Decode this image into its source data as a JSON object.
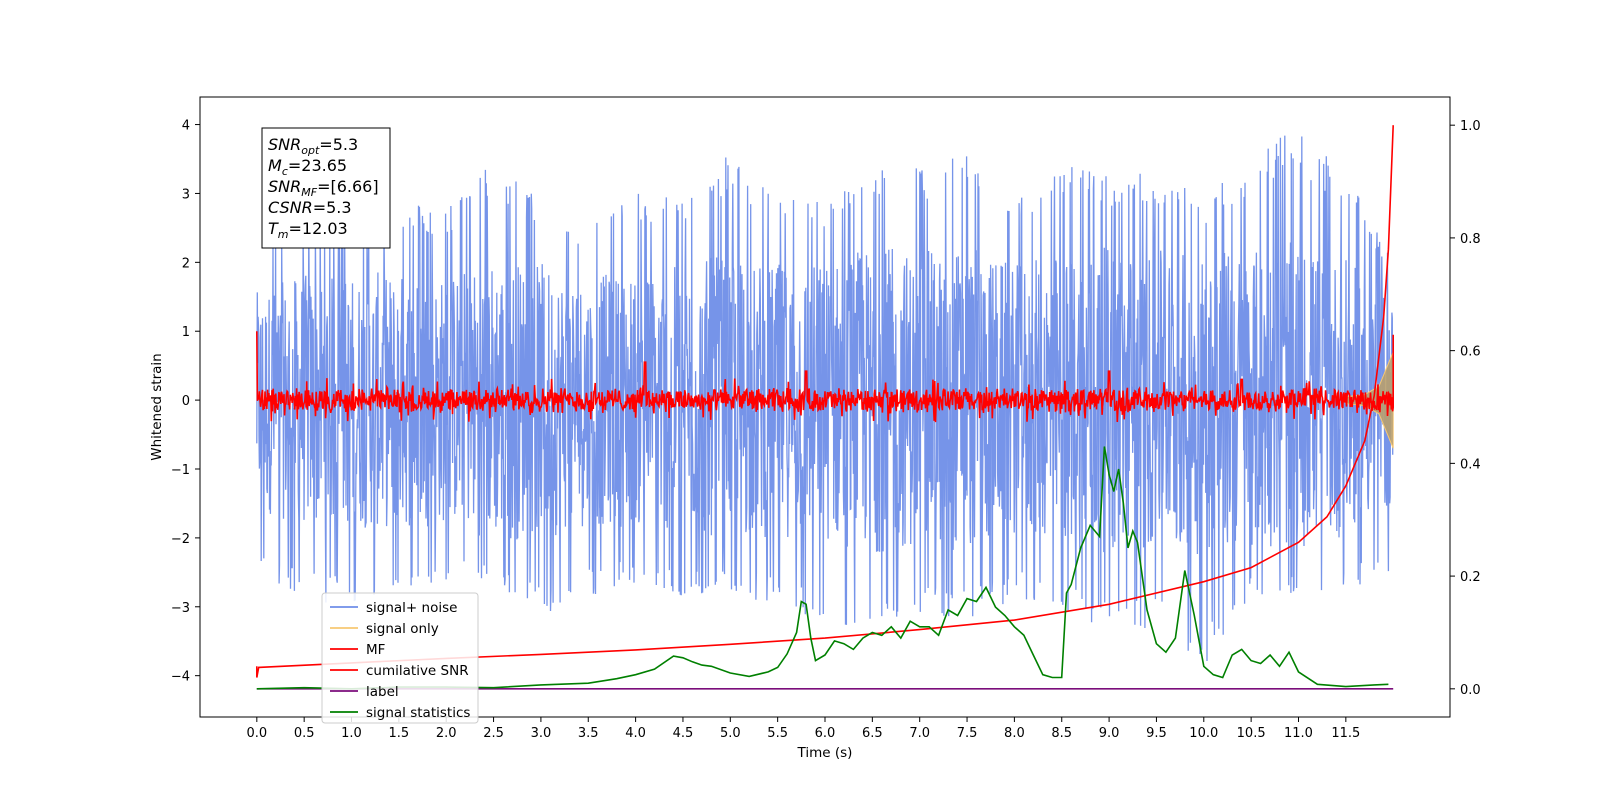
{
  "chart_data": {
    "type": "line",
    "title": "",
    "xlabel": "Time (s)",
    "ylabel": "Whitened strain",
    "xlim": [
      -0.6,
      12.6
    ],
    "ylim": [
      -4.6,
      4.4
    ],
    "y2lim": [
      -0.05,
      1.05
    ],
    "grid": false,
    "legend_position": "lower-left",
    "x_ticks": [
      0.0,
      0.5,
      1.0,
      1.5,
      2.0,
      2.5,
      3.0,
      3.5,
      4.0,
      4.5,
      5.0,
      5.5,
      6.0,
      6.5,
      7.0,
      7.5,
      8.0,
      8.5,
      9.0,
      9.5,
      10.0,
      10.5,
      11.0,
      11.5
    ],
    "x_tick_labels": [
      "0.0",
      "0.5",
      "1.0",
      "1.5",
      "2.0",
      "2.5",
      "3.0",
      "3.5",
      "4.0",
      "4.5",
      "5.0",
      "5.5",
      "6.0",
      "6.5",
      "7.0",
      "7.5",
      "8.0",
      "8.5",
      "9.0",
      "9.5",
      "10.0",
      "10.5",
      "11.0",
      "11.5"
    ],
    "y_ticks": [
      -4,
      -3,
      -2,
      -1,
      0,
      1,
      2,
      3,
      4
    ],
    "y_tick_labels": [
      "−4",
      "−3",
      "−2",
      "−1",
      "0",
      "1",
      "2",
      "3",
      "4"
    ],
    "y2_ticks": [
      0.0,
      0.2,
      0.4,
      0.6,
      0.8,
      1.0
    ],
    "y2_tick_labels": [
      "0.0",
      "0.2",
      "0.4",
      "0.6",
      "0.8",
      "1.0"
    ],
    "series": [
      {
        "name": "signal+ noise",
        "color": "#6f8ee8",
        "axis": "left",
        "x_range": [
          0.0,
          12.0
        ],
        "envelope": [
          [
            0.0,
            -2.5,
            2.3
          ],
          [
            0.5,
            -2.9,
            2.7
          ],
          [
            1.0,
            -3.0,
            2.6
          ],
          [
            1.5,
            -2.8,
            2.9
          ],
          [
            2.0,
            -2.7,
            2.8
          ],
          [
            2.5,
            -2.8,
            3.5
          ],
          [
            3.0,
            -3.2,
            2.9
          ],
          [
            3.5,
            -2.9,
            2.6
          ],
          [
            4.0,
            -2.7,
            3.0
          ],
          [
            4.5,
            -2.9,
            3.0
          ],
          [
            5.0,
            -2.8,
            3.6
          ],
          [
            5.5,
            -3.0,
            3.0
          ],
          [
            6.0,
            -3.3,
            2.9
          ],
          [
            6.5,
            -3.3,
            3.5
          ],
          [
            7.0,
            -3.1,
            3.4
          ],
          [
            7.5,
            -3.2,
            3.6
          ],
          [
            8.0,
            -2.9,
            3.0
          ],
          [
            8.5,
            -3.0,
            3.5
          ],
          [
            9.0,
            -3.5,
            3.3
          ],
          [
            9.5,
            -3.3,
            3.3
          ],
          [
            10.0,
            -3.9,
            3.0
          ],
          [
            10.5,
            -3.0,
            3.5
          ],
          [
            10.9,
            -2.8,
            4.0
          ],
          [
            11.5,
            -2.8,
            3.3
          ],
          [
            12.0,
            -2.6,
            2.0
          ]
        ]
      },
      {
        "name": "signal only",
        "color": "#f7c873",
        "axis": "left",
        "x_range": [
          11.5,
          12.0
        ],
        "envelope": [
          [
            11.5,
            -0.05,
            0.05
          ],
          [
            11.7,
            -0.08,
            0.08
          ],
          [
            11.85,
            -0.2,
            0.2
          ],
          [
            12.0,
            -0.7,
            0.7
          ]
        ]
      },
      {
        "name": "MF",
        "color": "#ff0000",
        "axis": "left",
        "x_range": [
          0.0,
          12.0
        ],
        "start": 1.0,
        "end": 0.95,
        "noise_amplitude": 0.15,
        "spikes": [
          [
            4.1,
            0.55
          ],
          [
            5.8,
            0.42
          ],
          [
            9.0,
            0.42
          ],
          [
            10.4,
            0.3
          ]
        ]
      },
      {
        "name": "cumilative SNR",
        "color": "#ff0000",
        "axis": "right",
        "x": [
          0.0,
          0.02,
          1.0,
          2.0,
          3.0,
          4.0,
          5.0,
          6.0,
          7.0,
          8.0,
          9.0,
          10.0,
          10.5,
          11.0,
          11.3,
          11.5,
          11.7,
          11.8,
          11.9,
          11.95,
          12.0
        ],
        "y": [
          0.02,
          0.038,
          0.046,
          0.054,
          0.061,
          0.069,
          0.079,
          0.09,
          0.105,
          0.122,
          0.15,
          0.19,
          0.215,
          0.26,
          0.305,
          0.36,
          0.44,
          0.52,
          0.66,
          0.78,
          1.0
        ]
      },
      {
        "name": "label",
        "color": "#7b0d7b",
        "axis": "right",
        "x": [
          0.0,
          12.0
        ],
        "y": [
          0.0,
          0.0
        ]
      },
      {
        "name": "signal statistics",
        "color": "#008000",
        "axis": "right",
        "x": [
          0.0,
          0.5,
          1.0,
          1.5,
          2.0,
          2.5,
          3.0,
          3.5,
          3.8,
          4.0,
          4.2,
          4.4,
          4.5,
          4.6,
          4.7,
          4.8,
          5.0,
          5.2,
          5.4,
          5.5,
          5.6,
          5.7,
          5.75,
          5.8,
          5.85,
          5.9,
          6.0,
          6.1,
          6.2,
          6.3,
          6.4,
          6.5,
          6.6,
          6.7,
          6.8,
          6.9,
          7.0,
          7.1,
          7.2,
          7.3,
          7.4,
          7.5,
          7.6,
          7.7,
          7.8,
          7.9,
          8.0,
          8.1,
          8.2,
          8.3,
          8.4,
          8.5,
          8.55,
          8.6,
          8.7,
          8.8,
          8.9,
          8.95,
          9.0,
          9.05,
          9.1,
          9.15,
          9.2,
          9.25,
          9.3,
          9.4,
          9.5,
          9.6,
          9.7,
          9.8,
          9.9,
          10.0,
          10.1,
          10.2,
          10.3,
          10.4,
          10.5,
          10.6,
          10.7,
          10.8,
          10.9,
          11.0,
          11.2,
          11.5,
          11.8,
          11.95
        ],
        "y": [
          0.0,
          0.002,
          0.0,
          0.003,
          0.003,
          0.002,
          0.007,
          0.01,
          0.018,
          0.025,
          0.035,
          0.058,
          0.055,
          0.048,
          0.042,
          0.04,
          0.028,
          0.022,
          0.03,
          0.038,
          0.062,
          0.1,
          0.155,
          0.15,
          0.09,
          0.05,
          0.06,
          0.085,
          0.08,
          0.07,
          0.09,
          0.1,
          0.095,
          0.11,
          0.09,
          0.12,
          0.11,
          0.11,
          0.095,
          0.14,
          0.13,
          0.16,
          0.155,
          0.18,
          0.145,
          0.13,
          0.11,
          0.095,
          0.06,
          0.025,
          0.02,
          0.02,
          0.17,
          0.185,
          0.25,
          0.29,
          0.27,
          0.43,
          0.38,
          0.35,
          0.39,
          0.33,
          0.25,
          0.28,
          0.26,
          0.14,
          0.08,
          0.065,
          0.09,
          0.21,
          0.13,
          0.04,
          0.025,
          0.02,
          0.06,
          0.07,
          0.05,
          0.045,
          0.06,
          0.04,
          0.065,
          0.03,
          0.008,
          0.004,
          0.007,
          0.008
        ]
      }
    ],
    "annotation_box": {
      "lines": [
        {
          "var": "SNR",
          "sub": "opt",
          "value": "=5.3"
        },
        {
          "var": "M",
          "sub": "c",
          "value": "=23.65"
        },
        {
          "var": "SNR",
          "sub": "MF",
          "value": "=[6.66]"
        },
        {
          "var": "CSNR",
          "sub": "",
          "value": "=5.3"
        },
        {
          "var": "T",
          "sub": "m",
          "value": "=12.03"
        }
      ]
    }
  }
}
